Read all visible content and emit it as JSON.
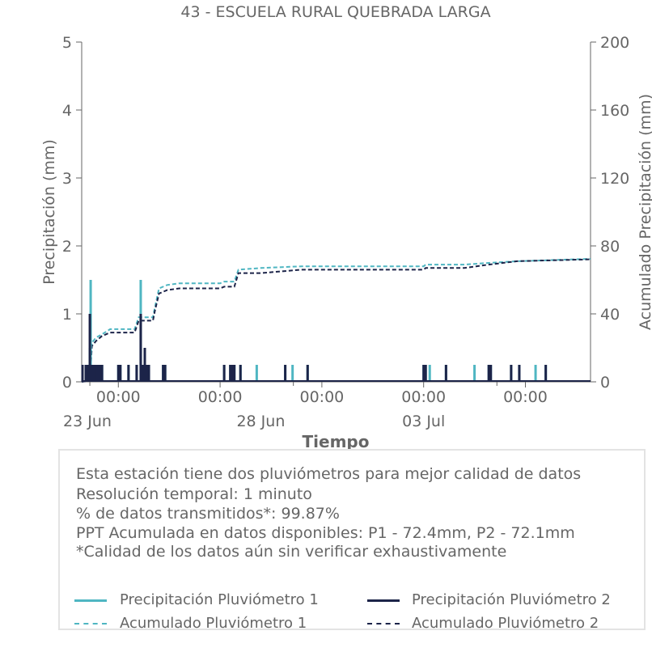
{
  "chart_data": {
    "type": "line",
    "title": "43 - ESCUELA RURAL QUEBRADA LARGA",
    "xlabel": "Tiempo",
    "ylabel": "Precipitación (mm)",
    "y2label": "Acumulado Precipitación (mm)",
    "ylim": [
      0,
      5
    ],
    "y2lim": [
      0,
      200
    ],
    "yticks": [
      "0",
      "1",
      "2",
      "3",
      "4",
      "5"
    ],
    "y2ticks": [
      "0",
      "40",
      "80",
      "120",
      "160",
      "200"
    ],
    "xlim_days": [
      22.6,
      35.1
    ],
    "xticks": [
      {
        "day": 23.5,
        "label": "00:00",
        "date": "23 Jun"
      },
      {
        "day": 26.0,
        "label": "00:00",
        "date": ""
      },
      {
        "day": 28.5,
        "label": "00:00",
        "date": ""
      },
      {
        "day": 31.0,
        "label": "00:00",
        "date": ""
      },
      {
        "day": 33.5,
        "label": "00:00",
        "date": ""
      }
    ],
    "xminor_ticks": [
      22.8,
      27.8,
      32.8
    ],
    "date_labels": [
      {
        "day": 22.6,
        "label": "23 Jun"
      },
      {
        "day": 27.0,
        "label": "28 Jun"
      },
      {
        "day": 31.0,
        "label": "03 Jul"
      }
    ],
    "series": [
      {
        "name": "Precipitación Pluviómetro 1",
        "color": "#4fb6c2",
        "style": "solid-bars",
        "events": [
          [
            22.62,
            0.25
          ],
          [
            22.7,
            0.25
          ],
          [
            22.78,
            0.25
          ],
          [
            22.8,
            0.5
          ],
          [
            22.82,
            1.5
          ],
          [
            22.85,
            0.25
          ],
          [
            22.9,
            0.25
          ],
          [
            22.95,
            0.25
          ],
          [
            23.0,
            0.25
          ],
          [
            23.05,
            0.25
          ],
          [
            23.1,
            0.25
          ],
          [
            23.5,
            0.25
          ],
          [
            23.55,
            0.25
          ],
          [
            23.75,
            0.25
          ],
          [
            23.95,
            0.25
          ],
          [
            24.05,
            1.5
          ],
          [
            24.12,
            0.25
          ],
          [
            24.2,
            0.25
          ],
          [
            24.25,
            0.25
          ],
          [
            24.6,
            0.25
          ],
          [
            24.65,
            0.25
          ],
          [
            26.1,
            0.25
          ],
          [
            26.25,
            0.25
          ],
          [
            26.3,
            0.25
          ],
          [
            26.35,
            0.25
          ],
          [
            26.5,
            0.25
          ],
          [
            26.9,
            0.25
          ],
          [
            27.6,
            0.25
          ],
          [
            27.78,
            0.25
          ],
          [
            28.15,
            0.25
          ],
          [
            31.0,
            0.25
          ],
          [
            31.05,
            0.25
          ],
          [
            31.15,
            0.25
          ],
          [
            31.55,
            0.25
          ],
          [
            32.25,
            0.25
          ],
          [
            32.6,
            0.25
          ],
          [
            32.65,
            0.25
          ],
          [
            33.15,
            0.25
          ],
          [
            33.35,
            0.25
          ],
          [
            33.75,
            0.25
          ],
          [
            34.0,
            0.25
          ]
        ]
      },
      {
        "name": "Precipitación Pluviómetro 2",
        "color": "#1c2449",
        "style": "solid-bars",
        "events": [
          [
            22.62,
            0.25
          ],
          [
            22.7,
            0.25
          ],
          [
            22.75,
            0.25
          ],
          [
            22.8,
            1.0
          ],
          [
            22.85,
            0.25
          ],
          [
            22.9,
            0.25
          ],
          [
            22.95,
            0.25
          ],
          [
            23.0,
            0.25
          ],
          [
            23.05,
            0.25
          ],
          [
            23.1,
            0.25
          ],
          [
            23.5,
            0.25
          ],
          [
            23.55,
            0.25
          ],
          [
            23.75,
            0.25
          ],
          [
            23.95,
            0.25
          ],
          [
            24.05,
            1.0
          ],
          [
            24.1,
            0.25
          ],
          [
            24.15,
            0.5
          ],
          [
            24.2,
            0.25
          ],
          [
            24.25,
            0.25
          ],
          [
            24.6,
            0.25
          ],
          [
            24.65,
            0.25
          ],
          [
            26.1,
            0.25
          ],
          [
            26.25,
            0.25
          ],
          [
            26.3,
            0.25
          ],
          [
            26.35,
            0.25
          ],
          [
            26.5,
            0.25
          ],
          [
            27.6,
            0.25
          ],
          [
            28.15,
            0.25
          ],
          [
            31.0,
            0.25
          ],
          [
            31.05,
            0.25
          ],
          [
            31.55,
            0.25
          ],
          [
            32.6,
            0.25
          ],
          [
            32.65,
            0.25
          ],
          [
            33.15,
            0.25
          ],
          [
            33.35,
            0.25
          ],
          [
            34.0,
            0.25
          ]
        ]
      },
      {
        "name": "Acumulado Pluviómetro 1",
        "color": "#4fb6c2",
        "style": "dashed",
        "points": [
          [
            22.6,
            0
          ],
          [
            22.75,
            1
          ],
          [
            22.82,
            10
          ],
          [
            22.85,
            23
          ],
          [
            22.95,
            26
          ],
          [
            23.1,
            28
          ],
          [
            23.3,
            31
          ],
          [
            23.9,
            31
          ],
          [
            24.0,
            38
          ],
          [
            24.35,
            38
          ],
          [
            24.4,
            44
          ],
          [
            24.5,
            55
          ],
          [
            24.7,
            57
          ],
          [
            25.0,
            58
          ],
          [
            26.0,
            58
          ],
          [
            26.1,
            59
          ],
          [
            26.35,
            59
          ],
          [
            26.45,
            66
          ],
          [
            27.0,
            67
          ],
          [
            28.0,
            68
          ],
          [
            31.0,
            68
          ],
          [
            31.05,
            69
          ],
          [
            32.0,
            69
          ],
          [
            32.6,
            70
          ],
          [
            33.3,
            71
          ],
          [
            35.1,
            72.4
          ]
        ]
      },
      {
        "name": "Acumulado Pluviómetro 2",
        "color": "#1c2449",
        "style": "dashed",
        "points": [
          [
            22.6,
            0
          ],
          [
            22.75,
            0.5
          ],
          [
            22.82,
            8
          ],
          [
            22.85,
            21
          ],
          [
            22.95,
            24
          ],
          [
            23.1,
            27
          ],
          [
            23.3,
            29
          ],
          [
            23.9,
            29
          ],
          [
            24.0,
            36
          ],
          [
            24.35,
            36
          ],
          [
            24.4,
            42
          ],
          [
            24.5,
            52
          ],
          [
            24.7,
            54
          ],
          [
            25.0,
            55
          ],
          [
            26.0,
            55
          ],
          [
            26.1,
            56
          ],
          [
            26.35,
            56
          ],
          [
            26.45,
            64
          ],
          [
            27.0,
            64
          ],
          [
            28.0,
            66
          ],
          [
            31.0,
            66
          ],
          [
            31.05,
            67
          ],
          [
            32.0,
            67
          ],
          [
            32.6,
            69
          ],
          [
            33.3,
            71
          ],
          [
            35.1,
            72.1
          ]
        ]
      }
    ],
    "grid": false,
    "legend_position": "bottom"
  },
  "info": {
    "line1": "Esta estación tiene dos pluviómetros para mejor calidad de datos",
    "line2": "Resolución temporal: 1 minuto",
    "line3": "% de datos transmitidos*: 99.87%",
    "line4": "PPT Acumulada en datos disponibles: P1 - 72.4mm, P2 - 72.1mm",
    "line5": "*Calidad de los datos aún sin verificar exhaustivamente"
  },
  "legend": {
    "p1": "Precipitación Pluviómetro 1",
    "p2": "Precipitación Pluviómetro 2",
    "a1": "Acumulado Pluviómetro 1",
    "a2": "Acumulado Pluviómetro 2"
  },
  "colors": {
    "p1": "#4fb6c2",
    "p2": "#1c2449",
    "axis": "#666666"
  }
}
